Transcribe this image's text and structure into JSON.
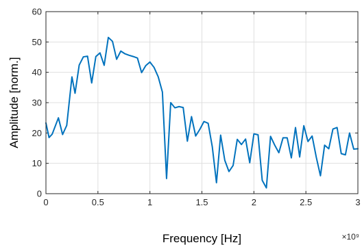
{
  "chart_data": {
    "type": "line",
    "xlabel": "Frequency [Hz]",
    "ylabel": "Amplitude [norm.]",
    "x_exponent_label": "×10⁹",
    "xlim": [
      0,
      3
    ],
    "ylim": [
      0,
      60
    ],
    "x_ticks": [
      0,
      0.5,
      1,
      1.5,
      2,
      2.5,
      3
    ],
    "x_tick_labels": [
      "0",
      "0.5",
      "1",
      "1.5",
      "2",
      "2.5",
      "3"
    ],
    "y_ticks": [
      0,
      10,
      20,
      30,
      40,
      50,
      60
    ],
    "y_tick_labels": [
      "0",
      "10",
      "20",
      "30",
      "40",
      "50",
      "60"
    ],
    "grid": true,
    "line_color": "#0072BD",
    "series": [
      {
        "x": [
          0,
          0.03,
          0.06,
          0.12,
          0.16,
          0.2,
          0.25,
          0.28,
          0.32,
          0.36,
          0.4,
          0.44,
          0.48,
          0.52,
          0.56,
          0.6,
          0.64,
          0.68,
          0.72,
          0.76,
          0.8,
          0.84,
          0.88,
          0.92,
          0.96,
          1.0,
          1.04,
          1.08,
          1.12,
          1.16,
          1.2,
          1.24,
          1.28,
          1.32,
          1.36,
          1.4,
          1.44,
          1.48,
          1.52,
          1.56,
          1.6,
          1.64,
          1.68,
          1.72,
          1.76,
          1.8,
          1.84,
          1.88,
          1.92,
          1.96,
          2.0,
          2.04,
          2.08,
          2.12,
          2.16,
          2.2,
          2.24,
          2.28,
          2.32,
          2.36,
          2.4,
          2.44,
          2.48,
          2.52,
          2.56,
          2.6,
          2.64,
          2.68,
          2.72,
          2.76,
          2.8,
          2.84,
          2.88,
          2.92,
          2.96,
          3.0
        ],
        "y": [
          23.3,
          18.5,
          19.6,
          25.0,
          19.5,
          22.5,
          38.5,
          33.1,
          42.4,
          45.1,
          45.3,
          36.5,
          45.2,
          46.4,
          42.3,
          51.5,
          50.2,
          44.3,
          47.0,
          46.1,
          45.6,
          45.2,
          44.7,
          39.9,
          42.2,
          43.4,
          41.6,
          38.5,
          33.5,
          5.0,
          30.0,
          28.3,
          28.7,
          28.4,
          17.3,
          25.4,
          19.0,
          21.2,
          23.8,
          23.2,
          15.4,
          3.6,
          19.3,
          11.0,
          7.3,
          9.3,
          17.9,
          16.2,
          18.0,
          10.2,
          19.7,
          19.4,
          4.4,
          1.9,
          18.9,
          16.0,
          13.5,
          18.4,
          18.4,
          11.8,
          21.8,
          12.1,
          22.4,
          17.2,
          19.0,
          12.0,
          5.9,
          16.0,
          14.8,
          21.3,
          21.8,
          13.2,
          12.8,
          20.0,
          14.7,
          14.8
        ]
      }
    ]
  }
}
